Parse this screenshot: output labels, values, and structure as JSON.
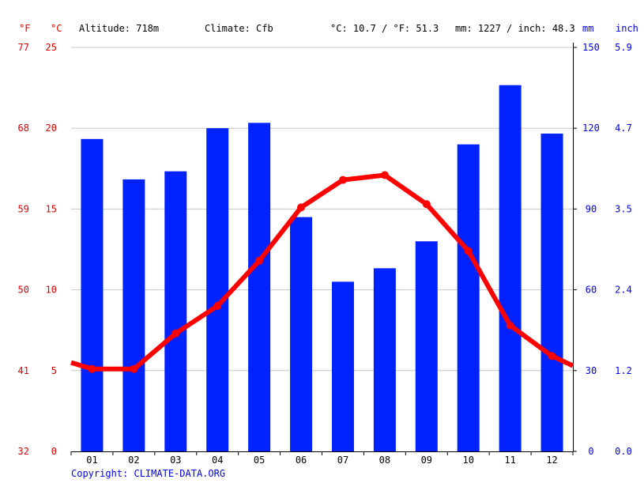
{
  "header": {
    "altitude": "Altitude: 718m",
    "climate": "Climate: Cfb",
    "temp_avg": "°C: 10.7 / °F: 51.3",
    "precip_avg": "mm: 1227 / inch: 48.3"
  },
  "units": {
    "fahrenheit": "°F",
    "celsius": "°C",
    "mm": "mm",
    "inch": "inch"
  },
  "copyright": "Copyright: CLIMATE-DATA.ORG",
  "colors": {
    "temperature": "#ff0000",
    "precipitation": "#0022ff",
    "grid": "#c8c8c8"
  },
  "chart_data": {
    "type": "bar",
    "categories": [
      "01",
      "02",
      "03",
      "04",
      "05",
      "06",
      "07",
      "08",
      "09",
      "10",
      "11",
      "12"
    ],
    "series": [
      {
        "axis": "right",
        "type": "bar",
        "values": [
          116,
          101,
          104,
          120,
          122,
          87,
          63,
          68,
          78,
          114,
          136,
          118
        ]
      },
      {
        "axis": "left",
        "type": "line",
        "values": [
          5.1,
          5.1,
          7.3,
          9.0,
          11.8,
          15.1,
          16.8,
          17.1,
          15.3,
          12.4,
          7.8,
          5.9
        ],
        "edge_start": 5.5,
        "edge_end": 5.3
      }
    ],
    "y_left_celsius": {
      "ylim": [
        0,
        25
      ],
      "ticks": [
        0,
        5,
        10,
        15,
        20,
        25
      ]
    },
    "y_left_fahrenheit": {
      "ticks": [
        32,
        41,
        50,
        59,
        68,
        77
      ]
    },
    "y_right_mm": {
      "ylim": [
        0,
        150
      ],
      "ticks": [
        0,
        30,
        60,
        90,
        120,
        150
      ]
    },
    "y_right_inch": {
      "ticks": [
        "0.0",
        "1.2",
        "2.4",
        "3.5",
        "4.7",
        "5.9"
      ]
    },
    "grid": true
  }
}
